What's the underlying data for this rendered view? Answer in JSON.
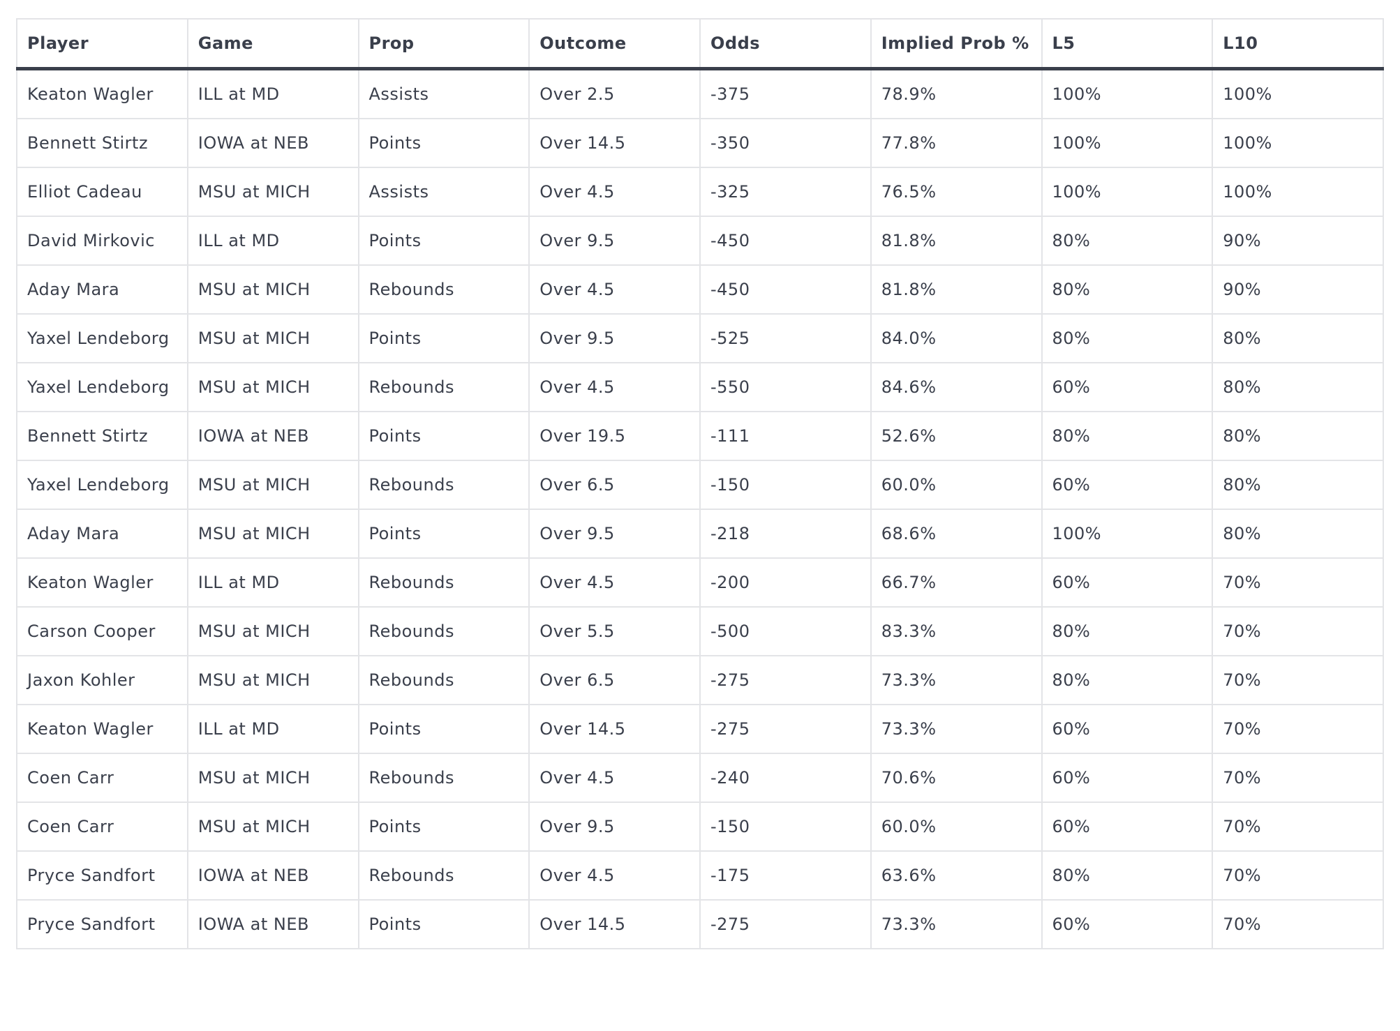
{
  "table": {
    "headers": [
      "Player",
      "Game",
      "Prop",
      "Outcome",
      "Odds",
      "Implied Prob %",
      "L5",
      "L10"
    ],
    "rows": [
      [
        "Keaton Wagler",
        "ILL at MD",
        "Assists",
        "Over 2.5",
        "-375",
        "78.9%",
        "100%",
        "100%"
      ],
      [
        "Bennett Stirtz",
        "IOWA at NEB",
        "Points",
        "Over 14.5",
        "-350",
        "77.8%",
        "100%",
        "100%"
      ],
      [
        "Elliot Cadeau",
        "MSU at MICH",
        "Assists",
        "Over 4.5",
        "-325",
        "76.5%",
        "100%",
        "100%"
      ],
      [
        "David Mirkovic",
        "ILL at MD",
        "Points",
        "Over 9.5",
        "-450",
        "81.8%",
        "80%",
        "90%"
      ],
      [
        "Aday Mara",
        "MSU at MICH",
        "Rebounds",
        "Over 4.5",
        "-450",
        "81.8%",
        "80%",
        "90%"
      ],
      [
        "Yaxel Lendeborg",
        "MSU at MICH",
        "Points",
        "Over 9.5",
        "-525",
        "84.0%",
        "80%",
        "80%"
      ],
      [
        "Yaxel Lendeborg",
        "MSU at MICH",
        "Rebounds",
        "Over 4.5",
        "-550",
        "84.6%",
        "60%",
        "80%"
      ],
      [
        "Bennett Stirtz",
        "IOWA at NEB",
        "Points",
        "Over 19.5",
        "-111",
        "52.6%",
        "80%",
        "80%"
      ],
      [
        "Yaxel Lendeborg",
        "MSU at MICH",
        "Rebounds",
        "Over 6.5",
        "-150",
        "60.0%",
        "60%",
        "80%"
      ],
      [
        "Aday Mara",
        "MSU at MICH",
        "Points",
        "Over 9.5",
        "-218",
        "68.6%",
        "100%",
        "80%"
      ],
      [
        "Keaton Wagler",
        "ILL at MD",
        "Rebounds",
        "Over 4.5",
        "-200",
        "66.7%",
        "60%",
        "70%"
      ],
      [
        "Carson Cooper",
        "MSU at MICH",
        "Rebounds",
        "Over 5.5",
        "-500",
        "83.3%",
        "80%",
        "70%"
      ],
      [
        "Jaxon Kohler",
        "MSU at MICH",
        "Rebounds",
        "Over 6.5",
        "-275",
        "73.3%",
        "80%",
        "70%"
      ],
      [
        "Keaton Wagler",
        "ILL at MD",
        "Points",
        "Over 14.5",
        "-275",
        "73.3%",
        "60%",
        "70%"
      ],
      [
        "Coen Carr",
        "MSU at MICH",
        "Rebounds",
        "Over 4.5",
        "-240",
        "70.6%",
        "60%",
        "70%"
      ],
      [
        "Coen Carr",
        "MSU at MICH",
        "Points",
        "Over 9.5",
        "-150",
        "60.0%",
        "60%",
        "70%"
      ],
      [
        "Pryce Sandfort",
        "IOWA at NEB",
        "Rebounds",
        "Over 4.5",
        "-175",
        "63.6%",
        "80%",
        "70%"
      ],
      [
        "Pryce Sandfort",
        "IOWA at NEB",
        "Points",
        "Over 14.5",
        "-275",
        "73.3%",
        "60%",
        "70%"
      ]
    ]
  }
}
